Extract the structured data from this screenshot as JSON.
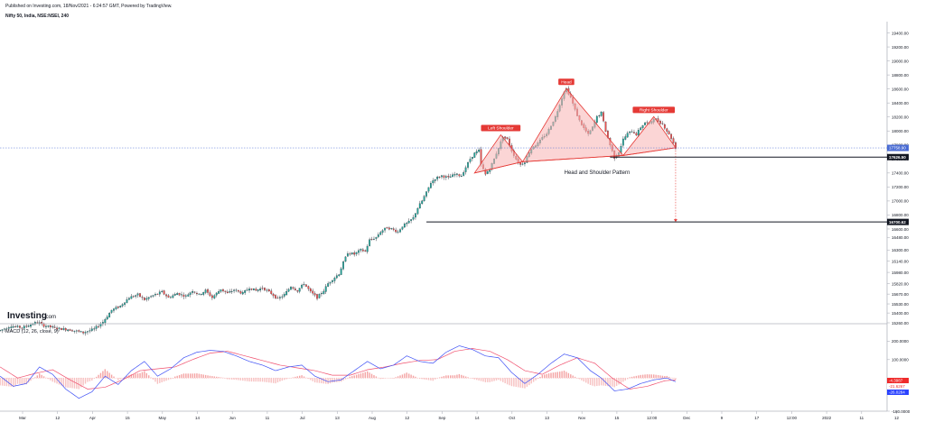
{
  "header": {
    "published": "Published on Investing.com, 18/Nov/2021 - 6:24:57 GMT, Powered by TradingView.",
    "title": "Nifty 50, India, NSE:NSEI, 240"
  },
  "logo": {
    "text": "Investing",
    "suffix": ".com"
  },
  "colors": {
    "up": "#26a69a",
    "down": "#ef5350",
    "pattern_fill": "#f7b3b3",
    "pattern_line": "#e53935",
    "macd_line": "#3f51f5",
    "signal_line": "#f0506e",
    "current_price_bg": "#4a6cd4",
    "level_bg": "#131722"
  },
  "chart_data": [
    {
      "type": "candlestick",
      "name": "price",
      "ylim": [
        15260,
        19510
      ],
      "y_ticks": [
        19400,
        19200,
        19000,
        18800,
        18600,
        18400,
        18200,
        18000,
        17800,
        17600,
        17400,
        17200,
        17000,
        16800,
        16600,
        16480,
        16300,
        16140,
        15980,
        15820,
        15670,
        15530,
        15400,
        15260
      ],
      "y_tick_labels": [
        "19400.00",
        "19200.00",
        "19000.00",
        "18800.00",
        "18600.00",
        "18400.00",
        "18200.00",
        "18000.00",
        "17800.00",
        "17600.00",
        "17400.00",
        "17200.00",
        "17000.00",
        "16800.00",
        "16600.00",
        "16480.00",
        "16300.00",
        "16140.00",
        "15980.00",
        "15820.00",
        "15670.00",
        "15530.00",
        "15400.00",
        "15260.00"
      ],
      "x_tick_labels": [
        "Mar",
        "12",
        "Apr",
        "15",
        "May",
        "14",
        "Jun",
        "11",
        "Jul",
        "13",
        "Aug",
        "12",
        "Sep",
        "14",
        "Oct",
        "13",
        "Nov",
        "15",
        "12:00",
        "Dec",
        "9",
        "17",
        "12:00",
        "2022",
        "11",
        "12"
      ],
      "data_end_label": "12:00",
      "path": [
        [
          -2,
          15150
        ],
        [
          3,
          15215
        ],
        [
          8,
          15190
        ],
        [
          15,
          15270
        ],
        [
          18,
          15220
        ],
        [
          24,
          15180
        ],
        [
          30,
          15160
        ],
        [
          36,
          15120
        ],
        [
          41,
          15170
        ],
        [
          45,
          15270
        ],
        [
          49,
          15440
        ],
        [
          53,
          15500
        ],
        [
          57,
          15620
        ],
        [
          61,
          15660
        ],
        [
          64,
          15590
        ],
        [
          68,
          15650
        ],
        [
          72,
          15700
        ],
        [
          75,
          15620
        ],
        [
          79,
          15680
        ],
        [
          83,
          15640
        ],
        [
          86,
          15720
        ],
        [
          89,
          15660
        ],
        [
          92,
          15720
        ],
        [
          95,
          15620
        ],
        [
          99,
          15740
        ],
        [
          102,
          15680
        ],
        [
          105,
          15730
        ],
        [
          109,
          15680
        ],
        [
          112,
          15760
        ],
        [
          115,
          15720
        ],
        [
          118,
          15760
        ],
        [
          122,
          15680
        ],
        [
          125,
          15600
        ],
        [
          128,
          15660
        ],
        [
          131,
          15780
        ],
        [
          134,
          15720
        ],
        [
          137,
          15820
        ],
        [
          140,
          15700
        ],
        [
          143,
          15620
        ],
        [
          146,
          15720
        ],
        [
          148,
          15820
        ],
        [
          150,
          15880
        ],
        [
          153,
          15960
        ],
        [
          155,
          16120
        ],
        [
          157,
          16260
        ],
        [
          160,
          16240
        ],
        [
          163,
          16300
        ],
        [
          165,
          16280
        ],
        [
          167,
          16440
        ],
        [
          170,
          16480
        ],
        [
          172,
          16560
        ],
        [
          175,
          16620
        ],
        [
          177,
          16600
        ],
        [
          180,
          16560
        ],
        [
          182,
          16640
        ],
        [
          185,
          16700
        ],
        [
          187,
          16760
        ],
        [
          189,
          16900
        ],
        [
          191,
          17000
        ],
        [
          193,
          17120
        ],
        [
          195,
          17260
        ],
        [
          197,
          17320
        ],
        [
          200,
          17360
        ],
        [
          203,
          17330
        ],
        [
          206,
          17380
        ],
        [
          209,
          17360
        ],
        [
          211,
          17480
        ],
        [
          213,
          17600
        ],
        [
          215,
          17680
        ],
        [
          217,
          17720
        ],
        [
          218,
          17520
        ],
        [
          220,
          17380
        ],
        [
          222,
          17460
        ],
        [
          224,
          17600
        ],
        [
          226,
          17760
        ],
        [
          228,
          17920
        ],
        [
          230,
          17880
        ],
        [
          232,
          17720
        ],
        [
          234,
          17600
        ],
        [
          236,
          17520
        ],
        [
          238,
          17560
        ],
        [
          240,
          17700
        ],
        [
          242,
          17780
        ],
        [
          244,
          17820
        ],
        [
          246,
          17900
        ],
        [
          248,
          17960
        ],
        [
          250,
          18080
        ],
        [
          252,
          18200
        ],
        [
          254,
          18380
        ],
        [
          256,
          18560
        ],
        [
          257,
          18600
        ],
        [
          259,
          18480
        ],
        [
          261,
          18300
        ],
        [
          263,
          18150
        ],
        [
          265,
          18040
        ],
        [
          267,
          17950
        ],
        [
          269,
          18050
        ],
        [
          271,
          18200
        ],
        [
          273,
          18260
        ],
        [
          275,
          18000
        ],
        [
          277,
          17800
        ],
        [
          279,
          17620
        ],
        [
          281,
          17700
        ],
        [
          283,
          17880
        ],
        [
          285,
          17960
        ],
        [
          287,
          18000
        ],
        [
          289,
          17950
        ],
        [
          291,
          18050
        ],
        [
          293,
          18120
        ],
        [
          295,
          18100
        ],
        [
          297,
          18180
        ],
        [
          299,
          18140
        ],
        [
          301,
          18100
        ],
        [
          303,
          18000
        ],
        [
          305,
          17900
        ],
        [
          307,
          17760
        ]
      ],
      "current_price": {
        "value": 17758,
        "label": "17758.90"
      },
      "levels": [
        {
          "value": 17626.5,
          "label": "17626.50",
          "x_from_bar": 277
        },
        {
          "value": 16700.6,
          "label": "16700.62",
          "x_from_bar": 193
        }
      ],
      "pattern": {
        "name": "Head and Shoulder Pattern",
        "left_shoulder": {
          "label": "Left Shoulder",
          "bar": 227,
          "value": 17945
        },
        "head": {
          "label": "Head",
          "bar": 257,
          "value": 18605
        },
        "right_shoulder": {
          "label": "Right Shoulder",
          "bar": 297,
          "value": 18205
        },
        "start": {
          "bar": 215,
          "value": 17400
        },
        "neck_1": {
          "bar": 237,
          "value": 17560
        },
        "neck_2": {
          "bar": 283,
          "value": 17650
        },
        "end": {
          "bar": 307,
          "value": 17760
        },
        "projection_bar": 307,
        "projection_target": 16700.6
      }
    },
    {
      "type": "macd",
      "name": "MACD (12, 26, close, 9)",
      "ylim": [
        -180,
        280
      ],
      "y_ticks": [
        200,
        100,
        -180
      ],
      "y_tick_labels": [
        "200.0000",
        "100.0000",
        "-180.0000"
      ],
      "macd_path": [
        [
          -2,
          10
        ],
        [
          4,
          -45
        ],
        [
          10,
          -30
        ],
        [
          16,
          60
        ],
        [
          22,
          20
        ],
        [
          28,
          -60
        ],
        [
          34,
          -110
        ],
        [
          40,
          -75
        ],
        [
          46,
          10
        ],
        [
          52,
          -35
        ],
        [
          58,
          40
        ],
        [
          64,
          90
        ],
        [
          70,
          10
        ],
        [
          76,
          50
        ],
        [
          82,
          110
        ],
        [
          88,
          140
        ],
        [
          94,
          150
        ],
        [
          100,
          145
        ],
        [
          106,
          120
        ],
        [
          112,
          90
        ],
        [
          118,
          70
        ],
        [
          124,
          40
        ],
        [
          130,
          60
        ],
        [
          136,
          70
        ],
        [
          142,
          10
        ],
        [
          148,
          -20
        ],
        [
          154,
          -10
        ],
        [
          160,
          40
        ],
        [
          166,
          90
        ],
        [
          172,
          50
        ],
        [
          178,
          70
        ],
        [
          184,
          120
        ],
        [
          190,
          90
        ],
        [
          196,
          80
        ],
        [
          202,
          140
        ],
        [
          208,
          175
        ],
        [
          214,
          155
        ],
        [
          220,
          120
        ],
        [
          226,
          110
        ],
        [
          232,
          30
        ],
        [
          238,
          -30
        ],
        [
          244,
          20
        ],
        [
          250,
          80
        ],
        [
          256,
          130
        ],
        [
          262,
          110
        ],
        [
          268,
          40
        ],
        [
          273,
          0
        ],
        [
          279,
          -70
        ],
        [
          285,
          -60
        ],
        [
          291,
          -30
        ],
        [
          297,
          -10
        ],
        [
          303,
          0
        ],
        [
          307,
          -20
        ]
      ],
      "signal_path": [
        [
          -2,
          60
        ],
        [
          6,
          0
        ],
        [
          14,
          25
        ],
        [
          22,
          45
        ],
        [
          30,
          -10
        ],
        [
          38,
          -60
        ],
        [
          46,
          -50
        ],
        [
          54,
          -10
        ],
        [
          62,
          40
        ],
        [
          70,
          50
        ],
        [
          78,
          60
        ],
        [
          86,
          100
        ],
        [
          94,
          135
        ],
        [
          102,
          145
        ],
        [
          110,
          120
        ],
        [
          118,
          95
        ],
        [
          126,
          70
        ],
        [
          134,
          55
        ],
        [
          142,
          40
        ],
        [
          150,
          15
        ],
        [
          158,
          15
        ],
        [
          166,
          45
        ],
        [
          174,
          60
        ],
        [
          182,
          80
        ],
        [
          190,
          95
        ],
        [
          198,
          100
        ],
        [
          206,
          145
        ],
        [
          214,
          160
        ],
        [
          222,
          145
        ],
        [
          230,
          100
        ],
        [
          238,
          40
        ],
        [
          246,
          20
        ],
        [
          254,
          70
        ],
        [
          262,
          110
        ],
        [
          270,
          80
        ],
        [
          278,
          0
        ],
        [
          286,
          -60
        ],
        [
          294,
          -45
        ],
        [
          302,
          -15
        ],
        [
          307,
          -10
        ]
      ],
      "last_values": [
        {
          "value": -4.3987,
          "label": "-4.3987",
          "role": "histogram"
        },
        {
          "value": -21.6267,
          "label": "-21.6267",
          "role": "signal"
        },
        {
          "value": -26.0284,
          "label": "-26.0284",
          "role": "macd"
        }
      ]
    }
  ]
}
